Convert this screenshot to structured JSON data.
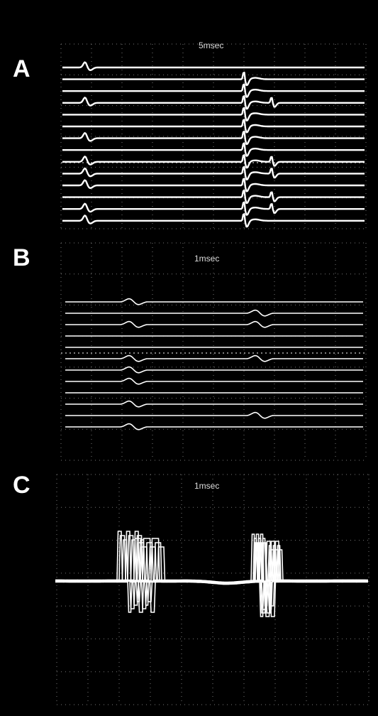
{
  "panels": [
    {
      "label": "A",
      "scale": "5msec"
    },
    {
      "label": "B",
      "scale": "1msec"
    },
    {
      "label": "C",
      "scale": "1msec"
    }
  ]
}
